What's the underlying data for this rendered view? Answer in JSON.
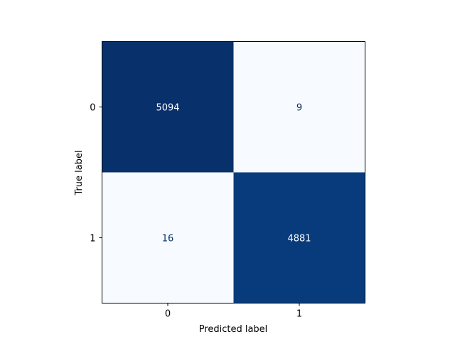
{
  "chart_data": {
    "type": "heatmap",
    "title": "",
    "xlabel": "Predicted label",
    "ylabel": "True label",
    "x_categories": [
      "0",
      "1"
    ],
    "y_categories": [
      "0",
      "1"
    ],
    "values": [
      [
        5094,
        9
      ],
      [
        16,
        4881
      ]
    ],
    "colormap": "Blues",
    "color_low": "#f7fbff",
    "color_high": "#08306b",
    "text_on_dark": "#ffffff",
    "text_on_light": "#08306b",
    "grid": false,
    "colorbar": false
  }
}
